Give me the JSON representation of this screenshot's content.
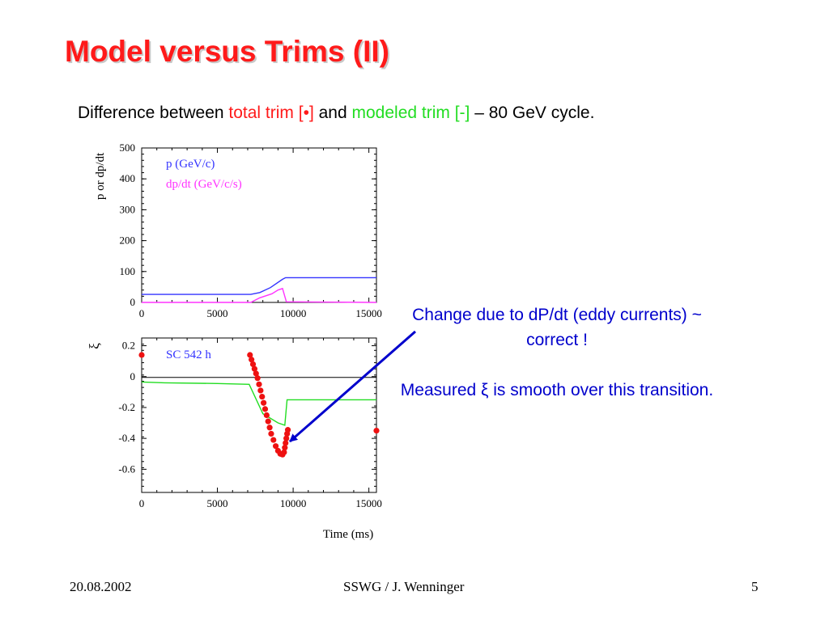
{
  "slide": {
    "title": "Model versus Trims (II)",
    "subtitle": {
      "prefix": "Difference between ",
      "total_trim": "total trim [•]",
      "and": " and ",
      "modeled_trim": "modeled trim [-]",
      "suffix": " – 80 GeV cycle."
    },
    "notes": {
      "line1": "Change due to dP/dt (eddy currents) ~ correct !",
      "line2": "Measured ξ is smooth over this transition."
    },
    "footer": {
      "date": "20.08.2002",
      "center": "SSWG / J. Wenninger",
      "page": "5"
    },
    "colors": {
      "title": "#ff1a1a",
      "note": "#0000cc",
      "momentum": "#3333ff",
      "dpdt": "#ff33ff",
      "model": "#22dd22",
      "measured": "#ee1111"
    }
  },
  "chart_data": [
    {
      "type": "line",
      "ylabel": "p or dp/dt",
      "xlabel": "",
      "xlim": [
        0,
        15500
      ],
      "ylim": [
        0,
        500
      ],
      "x_ticks": [
        0,
        5000,
        10000,
        15000
      ],
      "y_ticks": [
        0,
        100,
        200,
        300,
        400,
        500
      ],
      "legend_position": "top-left",
      "series": [
        {
          "name": "p (GeV/c)",
          "color": "#3333ff",
          "points": [
            [
              0,
              26
            ],
            [
              7200,
              26
            ],
            [
              7800,
              32
            ],
            [
              8500,
              48
            ],
            [
              9300,
              75
            ],
            [
              9500,
              80
            ],
            [
              15500,
              80
            ]
          ]
        },
        {
          "name": "dp/dt (GeV/c/s)",
          "color": "#ff33ff",
          "points": [
            [
              0,
              0
            ],
            [
              7200,
              0
            ],
            [
              7800,
              15
            ],
            [
              8600,
              28
            ],
            [
              9000,
              40
            ],
            [
              9300,
              45
            ],
            [
              9550,
              2
            ],
            [
              15500,
              0
            ]
          ]
        }
      ]
    },
    {
      "type": "scatter",
      "annotation": "SC 542 h",
      "xlabel": "Time (ms)",
      "ylabel": "ξ",
      "xlim": [
        0,
        15500
      ],
      "ylim": [
        -0.75,
        0.25
      ],
      "x_ticks": [
        0,
        5000,
        10000,
        15000
      ],
      "y_ticks": [
        0.2,
        0,
        -0.2,
        -0.4,
        -0.6
      ],
      "zero_line": true,
      "series": [
        {
          "name": "modeled trim",
          "color": "#22dd22",
          "style": "line",
          "points": [
            [
              0,
              -0.035
            ],
            [
              1500,
              -0.04
            ],
            [
              5000,
              -0.045
            ],
            [
              7100,
              -0.05
            ],
            [
              8000,
              -0.24
            ],
            [
              9000,
              -0.3
            ],
            [
              9450,
              -0.315
            ],
            [
              9600,
              -0.15
            ],
            [
              15500,
              -0.15
            ]
          ]
        },
        {
          "name": "total trim",
          "color": "#ee1111",
          "style": "points",
          "points": [
            [
              0,
              0.14
            ],
            [
              7150,
              0.14
            ],
            [
              7250,
              0.11
            ],
            [
              7350,
              0.08
            ],
            [
              7450,
              0.05
            ],
            [
              7550,
              0.02
            ],
            [
              7650,
              -0.01
            ],
            [
              7750,
              -0.05
            ],
            [
              7850,
              -0.09
            ],
            [
              7950,
              -0.13
            ],
            [
              8050,
              -0.17
            ],
            [
              8150,
              -0.21
            ],
            [
              8250,
              -0.25
            ],
            [
              8350,
              -0.29
            ],
            [
              8450,
              -0.33
            ],
            [
              8550,
              -0.37
            ],
            [
              8700,
              -0.41
            ],
            [
              8850,
              -0.45
            ],
            [
              9000,
              -0.48
            ],
            [
              9150,
              -0.5
            ],
            [
              9300,
              -0.505
            ],
            [
              9400,
              -0.49
            ],
            [
              9450,
              -0.46
            ],
            [
              9500,
              -0.43
            ],
            [
              9550,
              -0.4
            ],
            [
              9600,
              -0.37
            ],
            [
              9650,
              -0.345
            ],
            [
              15500,
              -0.35
            ]
          ]
        }
      ]
    }
  ]
}
